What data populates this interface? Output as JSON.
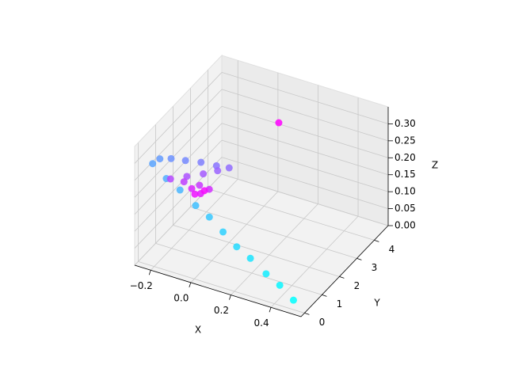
{
  "chart_data": {
    "type": "scatter3d",
    "colormap": "cool",
    "xlabel": "X",
    "ylabel": "Y",
    "zlabel": "Z",
    "x": [
      0.46,
      0.39,
      0.32,
      0.24,
      0.17,
      0.1,
      0.03,
      -0.04,
      -0.12,
      -0.19,
      -0.26,
      -0.25,
      -0.22,
      -0.17,
      -0.11,
      -0.05,
      0.0,
      -0.04,
      -0.09,
      -0.15,
      -0.21,
      -0.16,
      -0.1,
      -0.06,
      -0.13,
      -0.09,
      -0.11,
      -0.08,
      0.1
    ],
    "y": [
      0.4,
      0.42,
      0.44,
      0.46,
      0.48,
      0.5,
      0.52,
      0.54,
      0.56,
      0.58,
      0.6,
      0.9,
      1.2,
      1.45,
      1.65,
      1.85,
      2.0,
      1.8,
      1.55,
      1.3,
      1.05,
      1.25,
      1.45,
      1.55,
      1.35,
      1.4,
      1.3,
      1.5,
      3.7
    ],
    "z": [
      0.0,
      0.03,
      0.05,
      0.08,
      0.1,
      0.13,
      0.16,
      0.18,
      0.21,
      0.23,
      0.26,
      0.26,
      0.25,
      0.24,
      0.235,
      0.225,
      0.22,
      0.215,
      0.21,
      0.205,
      0.2,
      0.19,
      0.18,
      0.17,
      0.17,
      0.16,
      0.16,
      0.165,
      0.28
    ],
    "xlim": [
      -0.28,
      0.55
    ],
    "ylim": [
      -0.2,
      4.8
    ],
    "zlim": [
      0,
      0.35
    ],
    "xticks": [
      {
        "value": -0.2,
        "label": "−0.2"
      },
      {
        "value": 0,
        "label": "0.0"
      },
      0.2,
      0.4
    ],
    "yticks": [
      0,
      1,
      2,
      3,
      4
    ],
    "zticks": [
      {
        "value": 0,
        "label": "0.00"
      },
      {
        "value": 0.05,
        "label": "0.05"
      },
      {
        "value": 0.1,
        "label": "0.10"
      },
      {
        "value": 0.15,
        "label": "0.15"
      },
      {
        "value": 0.2,
        "label": "0.20"
      },
      {
        "value": 0.25,
        "label": "0.25"
      },
      {
        "value": 0.3,
        "label": "0.30"
      }
    ],
    "grid": true
  }
}
